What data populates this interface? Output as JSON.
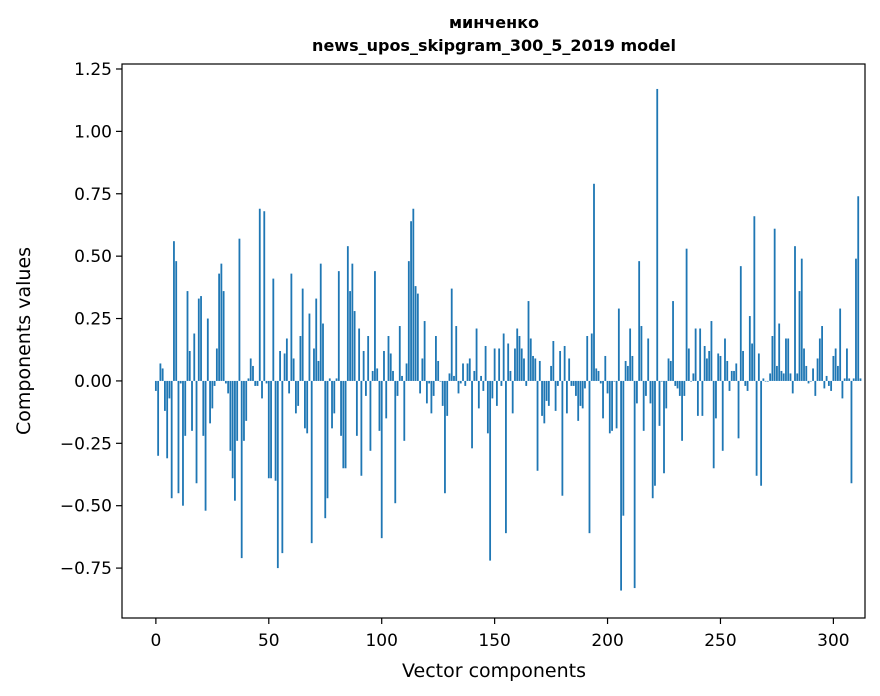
{
  "chart_data": {
    "type": "bar",
    "title_line1": "минченко",
    "title_line2": "news_upos_skipgram_300_5_2019 model",
    "xlabel": "Vector components",
    "ylabel": "Components values",
    "xlim": [
      -15,
      314
    ],
    "ylim": [
      -0.95,
      1.27
    ],
    "xticks": [
      0,
      50,
      100,
      150,
      200,
      250,
      300
    ],
    "xtick_labels": [
      "0",
      "50",
      "100",
      "150",
      "200",
      "250",
      "300"
    ],
    "yticks": [
      -0.75,
      -0.5,
      -0.25,
      0.0,
      0.25,
      0.5,
      0.75,
      1.0,
      1.25
    ],
    "ytick_labels": [
      "−0.75",
      "−0.50",
      "−0.25",
      "0.00",
      "0.25",
      "0.50",
      "0.75",
      "1.00",
      "1.25"
    ],
    "bar_color": "#1f77b4",
    "values": [
      -0.04,
      -0.3,
      0.07,
      0.05,
      -0.12,
      -0.31,
      -0.07,
      -0.47,
      0.56,
      0.48,
      -0.45,
      -0.01,
      -0.5,
      -0.22,
      0.36,
      0.12,
      -0.2,
      0.19,
      -0.41,
      0.33,
      0.34,
      -0.22,
      -0.52,
      0.25,
      -0.17,
      -0.11,
      -0.02,
      0.13,
      0.43,
      0.47,
      0.36,
      -0.01,
      -0.05,
      -0.28,
      -0.39,
      -0.48,
      -0.24,
      0.57,
      -0.71,
      -0.24,
      -0.16,
      0.01,
      0.09,
      0.06,
      -0.02,
      -0.02,
      0.69,
      -0.07,
      0.68,
      -0.01,
      -0.39,
      -0.39,
      0.41,
      -0.4,
      -0.75,
      0.12,
      -0.69,
      0.11,
      0.17,
      -0.05,
      0.43,
      0.09,
      -0.13,
      -0.1,
      0.18,
      0.37,
      -0.19,
      -0.21,
      0.27,
      -0.65,
      0.13,
      0.33,
      0.08,
      0.47,
      0.23,
      -0.55,
      -0.47,
      0.01,
      -0.19,
      -0.13,
      0.01,
      0.44,
      -0.22,
      -0.35,
      -0.35,
      0.54,
      0.36,
      0.47,
      0.28,
      -0.22,
      0.21,
      -0.38,
      0.12,
      -0.06,
      0.18,
      -0.28,
      0.04,
      0.44,
      0.05,
      -0.2,
      -0.63,
      0.12,
      -0.15,
      0.18,
      0.11,
      0.04,
      -0.49,
      -0.06,
      0.22,
      0.02,
      -0.24,
      0.07,
      0.48,
      0.64,
      0.69,
      0.38,
      0.35,
      -0.05,
      0.09,
      0.24,
      -0.09,
      -0.01,
      -0.13,
      -0.06,
      0.18,
      0.08,
      0.0,
      -0.1,
      -0.45,
      -0.14,
      0.03,
      0.37,
      0.02,
      0.22,
      -0.05,
      -0.01,
      0.07,
      -0.02,
      0.07,
      0.09,
      -0.27,
      0.04,
      0.21,
      -0.11,
      0.02,
      -0.04,
      0.14,
      -0.21,
      -0.72,
      -0.07,
      0.13,
      -0.1,
      0.13,
      -0.02,
      0.19,
      -0.61,
      0.15,
      0.04,
      -0.13,
      0.13,
      0.21,
      0.18,
      0.13,
      0.09,
      -0.02,
      0.32,
      0.17,
      0.1,
      0.09,
      -0.36,
      0.08,
      -0.14,
      -0.17,
      -0.08,
      -0.1,
      0.06,
      0.16,
      -0.12,
      -0.02,
      0.12,
      -0.46,
      0.14,
      -0.13,
      0.09,
      -0.02,
      -0.02,
      -0.06,
      -0.16,
      -0.1,
      -0.11,
      -0.03,
      0.18,
      -0.61,
      0.19,
      0.79,
      0.05,
      0.04,
      -0.01,
      -0.15,
      0.1,
      -0.05,
      -0.21,
      -0.2,
      0.0,
      -0.19,
      0.29,
      -0.84,
      -0.54,
      0.08,
      0.06,
      0.21,
      0.1,
      -0.83,
      -0.09,
      0.48,
      0.22,
      -0.2,
      -0.06,
      0.17,
      -0.09,
      -0.47,
      -0.42,
      1.17,
      -0.18,
      0.0,
      -0.37,
      -0.11,
      0.09,
      0.08,
      0.32,
      -0.02,
      -0.03,
      -0.06,
      -0.24,
      -0.06,
      0.53,
      0.13,
      0.0,
      0.03,
      0.21,
      -0.14,
      0.21,
      -0.14,
      0.14,
      0.09,
      0.12,
      0.24,
      -0.35,
      -0.15,
      0.11,
      0.1,
      -0.28,
      0.17,
      0.08,
      -0.04,
      0.04,
      0.04,
      0.07,
      -0.23,
      0.46,
      0.12,
      -0.02,
      -0.04,
      0.26,
      0.15,
      0.66,
      -0.38,
      0.11,
      -0.42,
      0.01,
      0.0,
      0.0,
      0.03,
      0.18,
      0.61,
      0.06,
      0.23,
      0.04,
      0.03,
      0.17,
      0.17,
      0.03,
      -0.05,
      0.54,
      0.03,
      0.36,
      0.49,
      0.13,
      0.06,
      -0.01,
      0.0,
      0.05,
      -0.06,
      0.09,
      0.17,
      0.22,
      -0.03,
      0.02,
      -0.02,
      -0.04,
      0.1,
      0.13,
      0.06,
      0.29,
      -0.07,
      0.01,
      0.13,
      0.01,
      -0.41,
      0.01,
      0.49,
      0.74,
      0.01
    ]
  }
}
